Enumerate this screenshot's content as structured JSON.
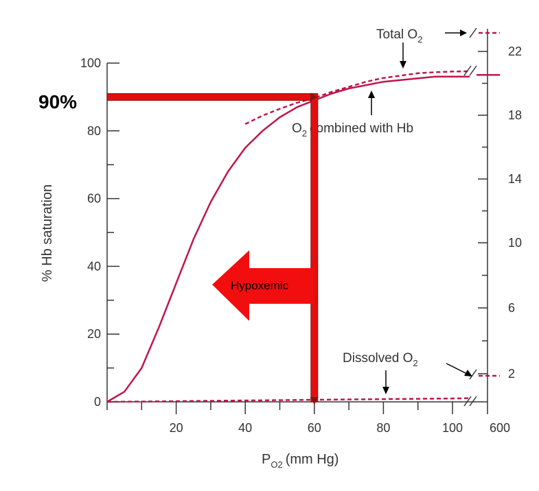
{
  "chart_data": {
    "type": "line",
    "xlabel": "P",
    "xlabel_subscript": "O2",
    "xlabel_unit": "(mm Hg)",
    "ylabel": "% Hb saturation",
    "xlim": [
      0,
      600
    ],
    "ylim": [
      0,
      100
    ],
    "x_ticks": [
      20,
      40,
      60,
      80,
      100
    ],
    "x_tick_labels": [
      "20",
      "40",
      "60",
      "80",
      "100"
    ],
    "x_break_tick": "600",
    "y_ticks": [
      0,
      20,
      40,
      60,
      80,
      100
    ],
    "y_tick_labels": [
      "0",
      "20",
      "40",
      "60",
      "80",
      "100"
    ],
    "y2_tick_labels": [
      "2",
      "6",
      "10",
      "14",
      "18",
      "22"
    ],
    "series": [
      {
        "name": "O2 combined with Hb",
        "style": "solid",
        "x": [
          0,
          5,
          10,
          15,
          20,
          25,
          30,
          35,
          40,
          45,
          50,
          55,
          60,
          65,
          70,
          75,
          80,
          85,
          90,
          95,
          100,
          105
        ],
        "y": [
          0,
          3,
          10,
          22,
          35,
          48,
          59,
          68,
          75,
          80,
          84,
          87,
          89,
          91,
          92.5,
          93.5,
          94.5,
          95,
          95.5,
          96,
          96,
          96
        ]
      },
      {
        "name": "Total O2",
        "style": "dashed",
        "x": [
          40,
          45,
          50,
          55,
          60,
          65,
          70,
          75,
          80,
          85,
          90,
          95,
          100,
          105
        ],
        "y": [
          82,
          84.5,
          86.5,
          88.3,
          89.7,
          91.5,
          93,
          94.5,
          95.6,
          96.3,
          97,
          97.3,
          97.5,
          97.6
        ]
      },
      {
        "name": "Dissolved O2",
        "style": "dashed",
        "x": [
          0,
          20,
          40,
          60,
          80,
          100,
          105
        ],
        "y": [
          0,
          0.2,
          0.4,
          0.6,
          0.8,
          1.0,
          1.1
        ]
      }
    ],
    "annotations": {
      "total": "Total O",
      "combined": "O",
      "combined_rest": "combined with Hb",
      "dissolved": "Dissolved O",
      "subscript": "2"
    },
    "highlight": {
      "x": 60,
      "y": 90,
      "label": "90%",
      "arrow_label": "Hypoxemic",
      "color": "#e01010"
    }
  },
  "colors": {
    "curve": "#c0154a",
    "axis": "#333333",
    "highlight": "#e01010",
    "highlight_edge": "#8a1010"
  }
}
